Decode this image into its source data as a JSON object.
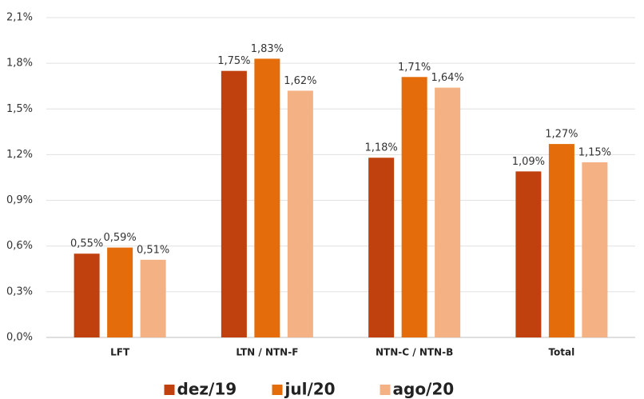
{
  "chart_data": {
    "type": "bar",
    "categories": [
      "LFT",
      "LTN / NTN-F",
      "NTN-C / NTN-B",
      "Total"
    ],
    "series": [
      {
        "name": "dez/19",
        "color": "#c0410e",
        "values": [
          0.55,
          1.75,
          1.18,
          1.09
        ],
        "value_labels": [
          "0,55%",
          "1,75%",
          "1,18%",
          "1,09%"
        ]
      },
      {
        "name": "jul/20",
        "color": "#e46c0a",
        "values": [
          0.59,
          1.83,
          1.71,
          1.27
        ],
        "value_labels": [
          "0,59%",
          "1,83%",
          "1,71%",
          "1,27%"
        ]
      },
      {
        "name": "ago/20",
        "color": "#f4b183",
        "values": [
          0.51,
          1.62,
          1.64,
          1.15
        ],
        "value_labels": [
          "0,51%",
          "1,62%",
          "1,64%",
          "1,15%"
        ]
      }
    ],
    "ylim": [
      0,
      2.1
    ],
    "yticks": [
      {
        "value": 0,
        "label": "0,0%"
      },
      {
        "value": 0.3,
        "label": "0,3%"
      },
      {
        "value": 0.6,
        "label": "0,6%"
      },
      {
        "value": 0.9,
        "label": "0,9%"
      },
      {
        "value": 1.2,
        "label": "1,2%"
      },
      {
        "value": 1.5,
        "label": "1,5%"
      },
      {
        "value": 1.8,
        "label": "1,8%"
      },
      {
        "value": 2.1,
        "label": "2,1%"
      }
    ],
    "grid": true,
    "legend": "bottom"
  }
}
